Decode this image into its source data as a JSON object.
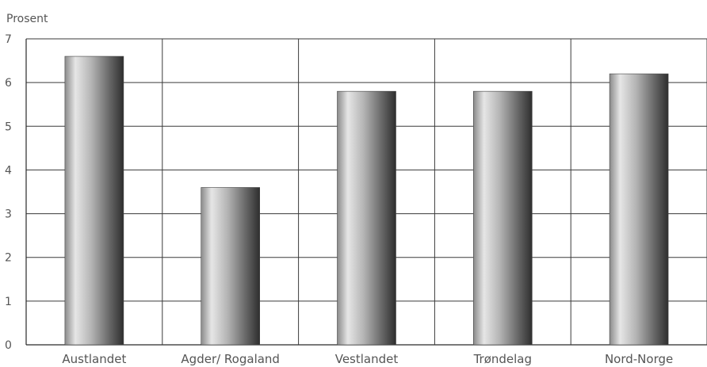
{
  "chart_data": {
    "type": "bar",
    "ylabel": "Prosent",
    "categories": [
      "Austlandet",
      "Agder/ Rogaland",
      "Vestlandet",
      "Trøndelag",
      "Nord-Norge"
    ],
    "values": [
      6.6,
      3.6,
      5.8,
      5.8,
      6.2
    ],
    "ylim": [
      0,
      7
    ],
    "yticks": [
      "0",
      "1",
      "2",
      "3",
      "4",
      "5",
      "6",
      "7"
    ],
    "grid": "on",
    "colors": {
      "bar_dark": "#2e2e2e",
      "bar_light": "#e6e6e6",
      "grid": "#3a3a3a"
    }
  }
}
